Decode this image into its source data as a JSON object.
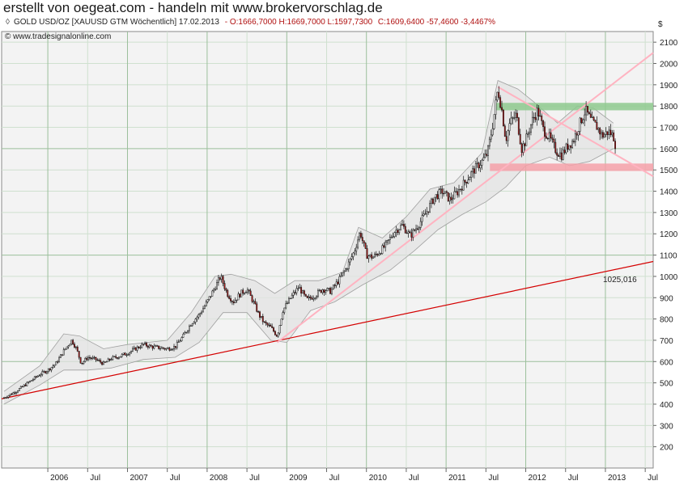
{
  "banner": "erstellt von oegeat.com - handeln mit www.brokervorschlag.de",
  "header": {
    "instrument": "GOLD USD/OZ [XAUUSD GTM  Wöchentlich] 17.02.2013",
    "ohlc": "- O:1666,7000 H:1669,7000 L:1597,7300",
    "close": "C:1609,6400 -57,4600 -3,4467%",
    "source": "© www.tradesignalonline.com"
  },
  "colors": {
    "plot_bg": "#f3f3f3",
    "grid": "#cfe0cf",
    "grid_major": "#9bbf9b",
    "candle_up": "#ffffff",
    "candle_down": "#b01818",
    "long_trend": "#d40000",
    "pink_line": "#ffb3c1",
    "resistance_zone": "#8ec98e",
    "support_zone": "#f4a0a8",
    "envelope_fill": "#e3e3e3",
    "envelope_line": "#a0a0a0"
  },
  "chart_data": {
    "type": "candlestick",
    "currency_label": "$",
    "y_ticks": [
      200,
      300,
      400,
      500,
      600,
      700,
      800,
      900,
      1000,
      1100,
      1200,
      1300,
      1400,
      1500,
      1600,
      1700,
      1800,
      1900,
      2000,
      2100
    ],
    "ylim": [
      100,
      2150
    ],
    "x_ticks": [
      {
        "label": "2006",
        "t": 2006.0
      },
      {
        "label": "Jul",
        "t": 2006.5
      },
      {
        "label": "2007",
        "t": 2007.0
      },
      {
        "label": "Jul",
        "t": 2007.5
      },
      {
        "label": "2008",
        "t": 2008.0
      },
      {
        "label": "Jul",
        "t": 2008.5
      },
      {
        "label": "2009",
        "t": 2009.0
      },
      {
        "label": "Jul",
        "t": 2009.5
      },
      {
        "label": "2010",
        "t": 2010.0
      },
      {
        "label": "Jul",
        "t": 2010.5
      },
      {
        "label": "2011",
        "t": 2011.0
      },
      {
        "label": "Jul",
        "t": 2011.5
      },
      {
        "label": "2012",
        "t": 2012.0
      },
      {
        "label": "Jul",
        "t": 2012.5
      },
      {
        "label": "2013",
        "t": 2013.0
      },
      {
        "label": "Jul",
        "t": 2013.5
      }
    ],
    "xlim": [
      2005.42,
      2013.6
    ],
    "price_path": [
      [
        2005.45,
        430
      ],
      [
        2005.6,
        460
      ],
      [
        2005.75,
        500
      ],
      [
        2005.9,
        540
      ],
      [
        2006.0,
        560
      ],
      [
        2006.1,
        590
      ],
      [
        2006.2,
        650
      ],
      [
        2006.3,
        700
      ],
      [
        2006.36,
        660
      ],
      [
        2006.42,
        590
      ],
      [
        2006.5,
        620
      ],
      [
        2006.6,
        610
      ],
      [
        2006.7,
        590
      ],
      [
        2006.8,
        615
      ],
      [
        2006.9,
        625
      ],
      [
        2007.0,
        640
      ],
      [
        2007.1,
        660
      ],
      [
        2007.2,
        680
      ],
      [
        2007.3,
        670
      ],
      [
        2007.4,
        665
      ],
      [
        2007.5,
        660
      ],
      [
        2007.6,
        670
      ],
      [
        2007.7,
        720
      ],
      [
        2007.8,
        780
      ],
      [
        2007.9,
        820
      ],
      [
        2008.0,
        880
      ],
      [
        2008.1,
        950
      ],
      [
        2008.17,
        1000
      ],
      [
        2008.25,
        920
      ],
      [
        2008.33,
        880
      ],
      [
        2008.42,
        920
      ],
      [
        2008.5,
        940
      ],
      [
        2008.58,
        880
      ],
      [
        2008.65,
        820
      ],
      [
        2008.72,
        780
      ],
      [
        2008.8,
        760
      ],
      [
        2008.88,
        720
      ],
      [
        2008.95,
        840
      ],
      [
        2009.05,
        900
      ],
      [
        2009.15,
        950
      ],
      [
        2009.25,
        890
      ],
      [
        2009.35,
        910
      ],
      [
        2009.45,
        940
      ],
      [
        2009.55,
        930
      ],
      [
        2009.65,
        980
      ],
      [
        2009.75,
        1040
      ],
      [
        2009.85,
        1120
      ],
      [
        2009.92,
        1210
      ],
      [
        2010.0,
        1100
      ],
      [
        2010.08,
        1090
      ],
      [
        2010.15,
        1110
      ],
      [
        2010.25,
        1150
      ],
      [
        2010.35,
        1210
      ],
      [
        2010.45,
        1240
      ],
      [
        2010.55,
        1190
      ],
      [
        2010.65,
        1240
      ],
      [
        2010.75,
        1300
      ],
      [
        2010.85,
        1370
      ],
      [
        2010.95,
        1400
      ],
      [
        2011.05,
        1360
      ],
      [
        2011.15,
        1400
      ],
      [
        2011.25,
        1450
      ],
      [
        2011.35,
        1500
      ],
      [
        2011.45,
        1540
      ],
      [
        2011.52,
        1580
      ],
      [
        2011.58,
        1700
      ],
      [
        2011.65,
        1880
      ],
      [
        2011.7,
        1780
      ],
      [
        2011.75,
        1640
      ],
      [
        2011.8,
        1720
      ],
      [
        2011.88,
        1760
      ],
      [
        2011.95,
        1600
      ],
      [
        2012.0,
        1640
      ],
      [
        2012.08,
        1730
      ],
      [
        2012.15,
        1780
      ],
      [
        2012.22,
        1690
      ],
      [
        2012.3,
        1650
      ],
      [
        2012.38,
        1590
      ],
      [
        2012.45,
        1570
      ],
      [
        2012.52,
        1610
      ],
      [
        2012.6,
        1640
      ],
      [
        2012.68,
        1720
      ],
      [
        2012.75,
        1780
      ],
      [
        2012.82,
        1730
      ],
      [
        2012.9,
        1700
      ],
      [
        2012.96,
        1660
      ],
      [
        2013.04,
        1680
      ],
      [
        2013.1,
        1660
      ],
      [
        2013.13,
        1610
      ]
    ],
    "upper_band": [
      [
        2005.45,
        460
      ],
      [
        2005.9,
        580
      ],
      [
        2006.2,
        730
      ],
      [
        2006.4,
        720
      ],
      [
        2006.7,
        660
      ],
      [
        2007.0,
        680
      ],
      [
        2007.5,
        700
      ],
      [
        2007.8,
        830
      ],
      [
        2008.1,
        1000
      ],
      [
        2008.3,
        1010
      ],
      [
        2008.6,
        980
      ],
      [
        2008.85,
        920
      ],
      [
        2009.1,
        980
      ],
      [
        2009.4,
        980
      ],
      [
        2009.7,
        1020
      ],
      [
        2009.9,
        1230
      ],
      [
        2010.2,
        1180
      ],
      [
        2010.5,
        1280
      ],
      [
        2010.8,
        1410
      ],
      [
        2011.1,
        1440
      ],
      [
        2011.45,
        1580
      ],
      [
        2011.65,
        1920
      ],
      [
        2011.9,
        1880
      ],
      [
        2012.1,
        1820
      ],
      [
        2012.4,
        1720
      ],
      [
        2012.65,
        1800
      ],
      [
        2012.85,
        1790
      ],
      [
        2013.1,
        1720
      ]
    ],
    "lower_band": [
      [
        2005.45,
        400
      ],
      [
        2005.9,
        490
      ],
      [
        2006.2,
        560
      ],
      [
        2006.5,
        560
      ],
      [
        2006.8,
        570
      ],
      [
        2007.2,
        610
      ],
      [
        2007.6,
        620
      ],
      [
        2007.9,
        690
      ],
      [
        2008.2,
        830
      ],
      [
        2008.5,
        830
      ],
      [
        2008.8,
        700
      ],
      [
        2009.0,
        690
      ],
      [
        2009.3,
        840
      ],
      [
        2009.6,
        880
      ],
      [
        2009.95,
        960
      ],
      [
        2010.3,
        1030
      ],
      [
        2010.6,
        1120
      ],
      [
        2010.9,
        1220
      ],
      [
        2011.2,
        1290
      ],
      [
        2011.5,
        1350
      ],
      [
        2011.75,
        1420
      ],
      [
        2012.0,
        1520
      ],
      [
        2012.3,
        1560
      ],
      [
        2012.55,
        1520
      ],
      [
        2012.8,
        1540
      ],
      [
        2013.0,
        1580
      ],
      [
        2013.1,
        1600
      ]
    ],
    "long_trendline": {
      "from": [
        2005.42,
        425
      ],
      "to": [
        2013.6,
        1070
      ]
    },
    "long_trendline_label": "1025,016",
    "pink_support_line": {
      "from": [
        2008.88,
        690
      ],
      "to": [
        2013.6,
        2050
      ]
    },
    "pink_down_line": {
      "from": [
        2011.65,
        1890
      ],
      "to": [
        2013.6,
        1470
      ]
    },
    "resistance_zone": {
      "from_t": 2011.62,
      "to_t": 2013.6,
      "low": 1780,
      "high": 1815
    },
    "support_zone": {
      "from_t": 2011.55,
      "to_t": 2013.6,
      "low": 1495,
      "high": 1530
    }
  }
}
